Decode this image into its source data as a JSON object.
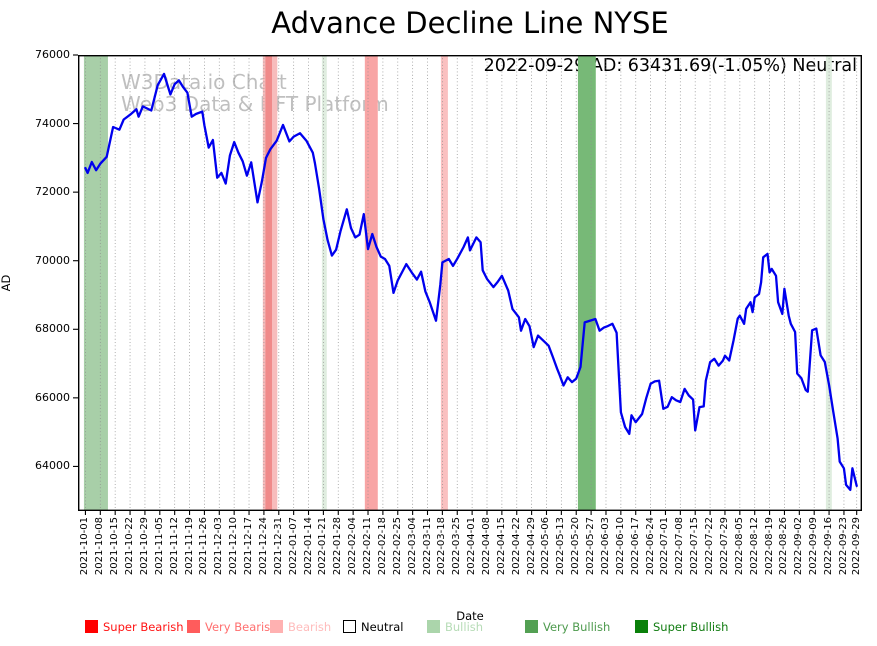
{
  "chart_data": {
    "type": "line",
    "title": "Advance Decline Line NYSE",
    "annotation": "2022-09-29 AD: 63431.69(-1.05%) Neutral",
    "xlabel": "Date",
    "ylabel": "AD",
    "watermark_line1": "W3Data.io Chart",
    "watermark_line2": "Web3 Data & NFT Platform",
    "line_color": "#0000ee",
    "grid": "vertical-dotted",
    "legend_position": "bottom",
    "ylim": [
      62700,
      76000
    ],
    "y_ticks": [
      64000,
      66000,
      68000,
      70000,
      72000,
      74000,
      76000
    ],
    "x_tick_labels": [
      "2021-10-01",
      "2021-10-08",
      "2021-10-15",
      "2021-10-22",
      "2021-10-29",
      "2021-11-05",
      "2021-11-12",
      "2021-11-19",
      "2021-11-26",
      "2021-12-03",
      "2021-12-10",
      "2021-12-17",
      "2021-12-24",
      "2021-12-31",
      "2022-01-07",
      "2022-01-14",
      "2022-01-21",
      "2022-01-28",
      "2022-02-04",
      "2022-02-11",
      "2022-02-18",
      "2022-02-25",
      "2022-03-04",
      "2022-03-11",
      "2022-03-18",
      "2022-03-25",
      "2022-04-01",
      "2022-04-08",
      "2022-04-15",
      "2022-04-22",
      "2022-04-29",
      "2022-05-06",
      "2022-05-13",
      "2022-05-20",
      "2022-05-27",
      "2022-06-03",
      "2022-06-10",
      "2022-06-17",
      "2022-06-24",
      "2022-07-01",
      "2022-07-08",
      "2022-07-15",
      "2022-07-22",
      "2022-07-29",
      "2022-08-05",
      "2022-08-12",
      "2022-08-19",
      "2022-08-26",
      "2022-09-02",
      "2022-09-09",
      "2022-09-16",
      "2022-09-23",
      "2022-09-29"
    ],
    "series": [
      {
        "name": "AD",
        "points": [
          [
            0,
            72700
          ],
          [
            1,
            72560
          ],
          [
            3,
            72880
          ],
          [
            5,
            72640
          ],
          [
            7,
            72830
          ],
          [
            10,
            73030
          ],
          [
            13,
            73900
          ],
          [
            16,
            73820
          ],
          [
            18,
            74120
          ],
          [
            21,
            74260
          ],
          [
            24,
            74420
          ],
          [
            25,
            74200
          ],
          [
            27,
            74500
          ],
          [
            31,
            74380
          ],
          [
            34,
            75120
          ],
          [
            37,
            75450
          ],
          [
            40,
            74850
          ],
          [
            42,
            75150
          ],
          [
            44,
            75260
          ],
          [
            46,
            75060
          ],
          [
            48,
            74900
          ],
          [
            50,
            74200
          ],
          [
            52,
            74280
          ],
          [
            55,
            74350
          ],
          [
            56,
            73950
          ],
          [
            58,
            73300
          ],
          [
            60,
            73520
          ],
          [
            62,
            72420
          ],
          [
            64,
            72560
          ],
          [
            66,
            72250
          ],
          [
            68,
            73070
          ],
          [
            70,
            73460
          ],
          [
            72,
            73150
          ],
          [
            74,
            72900
          ],
          [
            76,
            72480
          ],
          [
            78,
            72870
          ],
          [
            80,
            72090
          ],
          [
            81,
            71700
          ],
          [
            83,
            72300
          ],
          [
            85,
            73000
          ],
          [
            87,
            73250
          ],
          [
            90,
            73500
          ],
          [
            93,
            73960
          ],
          [
            96,
            73480
          ],
          [
            98,
            73620
          ],
          [
            101,
            73720
          ],
          [
            104,
            73500
          ],
          [
            107,
            73150
          ],
          [
            108,
            72850
          ],
          [
            110,
            72100
          ],
          [
            112,
            71210
          ],
          [
            114,
            70600
          ],
          [
            116,
            70150
          ],
          [
            118,
            70320
          ],
          [
            120,
            70850
          ],
          [
            123,
            71500
          ],
          [
            125,
            70950
          ],
          [
            127,
            70680
          ],
          [
            129,
            70760
          ],
          [
            131,
            71360
          ],
          [
            133,
            70340
          ],
          [
            135,
            70780
          ],
          [
            137,
            70400
          ],
          [
            139,
            70120
          ],
          [
            141,
            70050
          ],
          [
            143,
            69850
          ],
          [
            145,
            69060
          ],
          [
            147,
            69430
          ],
          [
            151,
            69900
          ],
          [
            154,
            69620
          ],
          [
            156,
            69450
          ],
          [
            158,
            69680
          ],
          [
            160,
            69100
          ],
          [
            162,
            68800
          ],
          [
            165,
            68250
          ],
          [
            167,
            69300
          ],
          [
            168,
            69950
          ],
          [
            171,
            70050
          ],
          [
            173,
            69850
          ],
          [
            175,
            70060
          ],
          [
            178,
            70400
          ],
          [
            180,
            70680
          ],
          [
            181,
            70300
          ],
          [
            184,
            70680
          ],
          [
            186,
            70540
          ],
          [
            187,
            69720
          ],
          [
            189,
            69470
          ],
          [
            192,
            69230
          ],
          [
            194,
            69380
          ],
          [
            196,
            69560
          ],
          [
            199,
            69130
          ],
          [
            201,
            68590
          ],
          [
            204,
            68350
          ],
          [
            205,
            67960
          ],
          [
            207,
            68300
          ],
          [
            209,
            68090
          ],
          [
            211,
            67480
          ],
          [
            213,
            67815
          ],
          [
            215,
            67700
          ],
          [
            218,
            67520
          ],
          [
            220,
            67190
          ],
          [
            222,
            66850
          ],
          [
            223,
            66700
          ],
          [
            225,
            66360
          ],
          [
            227,
            66600
          ],
          [
            229,
            66460
          ],
          [
            231,
            66560
          ],
          [
            233,
            66900
          ],
          [
            235,
            68200
          ],
          [
            238,
            68260
          ],
          [
            240,
            68300
          ],
          [
            242,
            67960
          ],
          [
            244,
            68050
          ],
          [
            246,
            68100
          ],
          [
            248,
            68160
          ],
          [
            250,
            67900
          ],
          [
            252,
            65580
          ],
          [
            254,
            65150
          ],
          [
            256,
            64950
          ],
          [
            257,
            65490
          ],
          [
            259,
            65290
          ],
          [
            262,
            65530
          ],
          [
            264,
            66000
          ],
          [
            266,
            66410
          ],
          [
            268,
            66480
          ],
          [
            270,
            66500
          ],
          [
            272,
            65680
          ],
          [
            274,
            65740
          ],
          [
            276,
            66020
          ],
          [
            278,
            65930
          ],
          [
            280,
            65880
          ],
          [
            282,
            66260
          ],
          [
            284,
            66070
          ],
          [
            286,
            65950
          ],
          [
            287,
            65050
          ],
          [
            289,
            65730
          ],
          [
            291,
            65750
          ],
          [
            292,
            66500
          ],
          [
            294,
            67040
          ],
          [
            296,
            67140
          ],
          [
            298,
            66940
          ],
          [
            300,
            67080
          ],
          [
            301,
            67230
          ],
          [
            303,
            67090
          ],
          [
            305,
            67670
          ],
          [
            307,
            68310
          ],
          [
            308,
            68400
          ],
          [
            310,
            68160
          ],
          [
            311,
            68600
          ],
          [
            313,
            68790
          ],
          [
            314,
            68500
          ],
          [
            315,
            68930
          ],
          [
            317,
            69030
          ],
          [
            318,
            69370
          ],
          [
            319,
            70100
          ],
          [
            321,
            70200
          ],
          [
            322,
            69660
          ],
          [
            323,
            69760
          ],
          [
            325,
            69560
          ],
          [
            326,
            68790
          ],
          [
            328,
            68450
          ],
          [
            329,
            69180
          ],
          [
            331,
            68400
          ],
          [
            332,
            68160
          ],
          [
            334,
            67920
          ],
          [
            335,
            66710
          ],
          [
            337,
            66570
          ],
          [
            339,
            66230
          ],
          [
            340,
            66180
          ],
          [
            342,
            67970
          ],
          [
            344,
            68020
          ],
          [
            346,
            67240
          ],
          [
            348,
            67045
          ],
          [
            350,
            66370
          ],
          [
            352,
            65590
          ],
          [
            354,
            64815
          ],
          [
            355,
            64140
          ],
          [
            357,
            63945
          ],
          [
            358,
            63460
          ],
          [
            360,
            63315
          ],
          [
            361,
            63945
          ],
          [
            363,
            63431.69
          ]
        ]
      }
    ],
    "signal_bands": [
      {
        "signal": "Bullish",
        "from_day": -0.7,
        "to_day": 10.6,
        "color": "#a8cfa8"
      },
      {
        "signal": "Bearish",
        "from_day": 83.5,
        "to_day": 90.3,
        "color": "#f7bcbc"
      },
      {
        "signal": "Very Bearish",
        "from_day": 84.7,
        "to_day": 87.8,
        "color": "#f08a8a"
      },
      {
        "signal": "Bullish",
        "from_day": 111.3,
        "to_day": 113.6,
        "color": "#dfeddf"
      },
      {
        "signal": "Very Bearish",
        "from_day": 131.5,
        "to_day": 137.6,
        "color": "#f8a5a5"
      },
      {
        "signal": "Bearish",
        "from_day": 167.3,
        "to_day": 170.6,
        "color": "#fac0c0"
      },
      {
        "signal": "Very Bullish",
        "from_day": 231.8,
        "to_day": 240.2,
        "color": "#77b977"
      },
      {
        "signal": "Bullish",
        "from_day": 348.5,
        "to_day": 351.3,
        "color": "#dfeddf"
      }
    ],
    "legend": [
      {
        "label": "Super Bearish",
        "swatch": "#ff0000",
        "text_color": "#ff1414",
        "swatch_border": "#ff0000"
      },
      {
        "label": "Very Bearish",
        "swatch": "#ff5c5c",
        "text_color": "#ff6e6e",
        "swatch_border": "#ff5c5c"
      },
      {
        "label": "Bearish",
        "swatch": "#ffb1b1",
        "text_color": "#ffbcbc",
        "swatch_border": "#ffb1b1"
      },
      {
        "label": "Neutral",
        "swatch": "#ffffff",
        "text_color": "#000000",
        "swatch_border": "#000000"
      },
      {
        "label": "Bullish",
        "swatch": "#abd5ab",
        "text_color": "#b7dcb7",
        "swatch_border": "#abd5ab"
      },
      {
        "label": "Very Bullish",
        "swatch": "#53a053",
        "text_color": "#4d9a4d",
        "swatch_border": "#53a053"
      },
      {
        "label": "Super Bullish",
        "swatch": "#0a800a",
        "text_color": "#117c11",
        "swatch_border": "#0a800a"
      }
    ]
  }
}
